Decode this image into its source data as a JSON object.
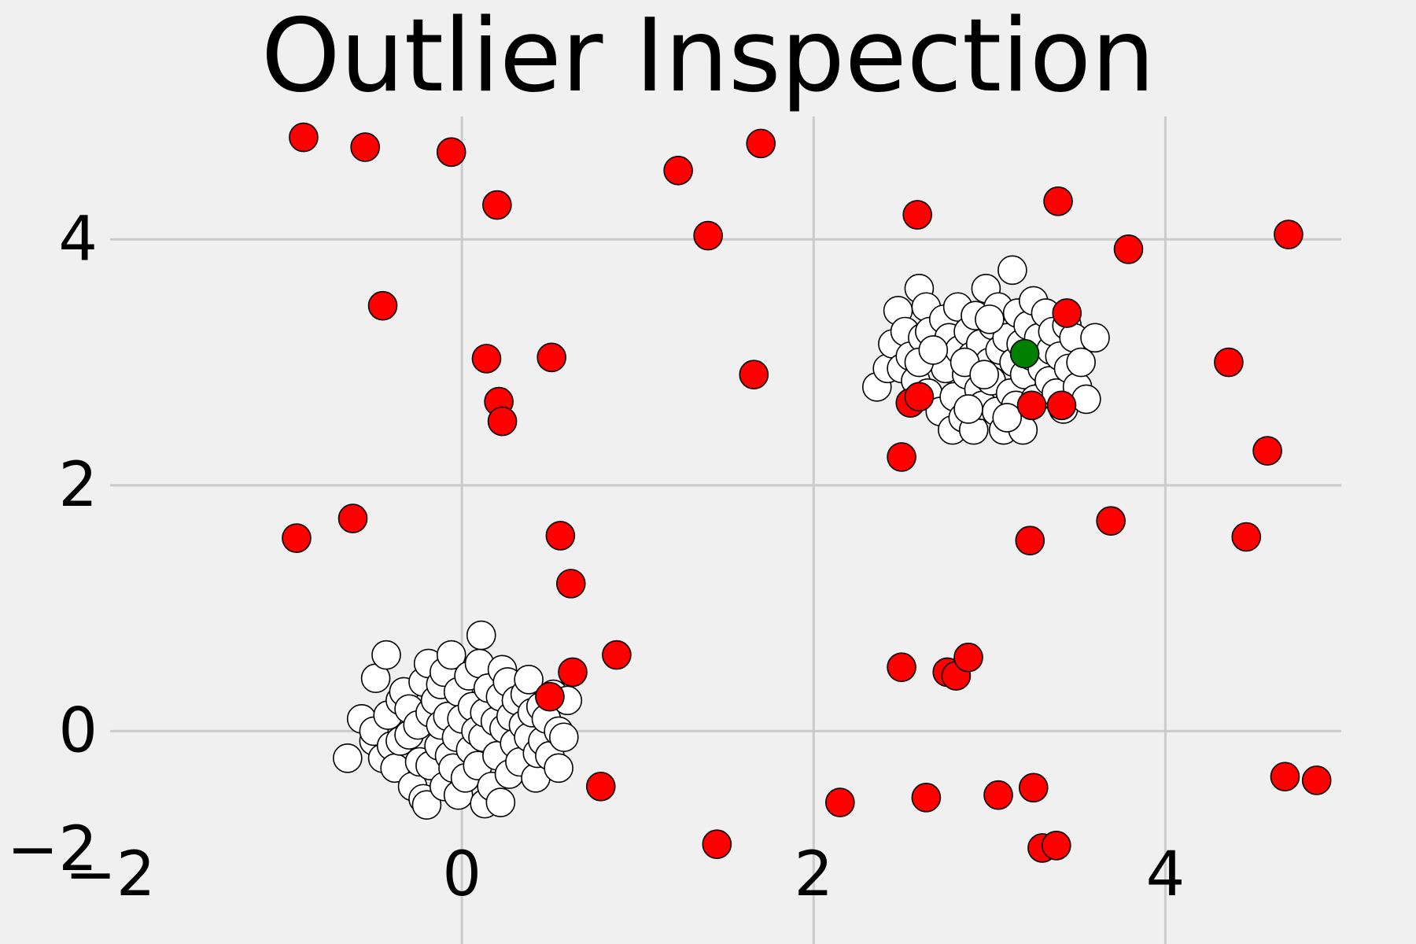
{
  "chart_data": {
    "type": "scatter",
    "title": "Outlier Inspection",
    "xlabel": "",
    "ylabel": "",
    "xlim": [
      -2,
      5.0
    ],
    "ylim": [
      -2,
      5.0
    ],
    "xticks": [
      -2,
      0,
      2,
      4
    ],
    "xtick_labels": [
      "−2",
      "0",
      "2",
      "4"
    ],
    "yticks": [
      -2,
      0,
      2,
      4
    ],
    "ytick_labels": [
      "−2",
      "0",
      "2",
      "4"
    ],
    "grid": true,
    "colors": {
      "background": "#f0f0f0",
      "grid": "#cbcbcb",
      "inlier": "#ffffff",
      "outlier": "#ff0000",
      "highlight": "#008000",
      "edge": "#000000"
    },
    "series": [
      {
        "color": "#ffffff",
        "points": [
          [
            -0.65,
            -0.22
          ],
          [
            -0.57,
            0.1
          ],
          [
            -0.5,
            -0.08
          ],
          [
            -0.5,
            0.0
          ],
          [
            -0.49,
            0.43
          ],
          [
            -0.45,
            -0.22
          ],
          [
            -0.43,
            0.62
          ],
          [
            -0.42,
            0.13
          ],
          [
            -0.4,
            -0.12
          ],
          [
            -0.38,
            -0.3
          ],
          [
            -0.35,
            -0.08
          ],
          [
            -0.35,
            0.25
          ],
          [
            -0.33,
            0.32
          ],
          [
            -0.3,
            -0.03
          ],
          [
            -0.3,
            0.18
          ],
          [
            -0.28,
            -0.45
          ],
          [
            -0.25,
            0.05
          ],
          [
            -0.24,
            -0.25
          ],
          [
            -0.22,
            0.4
          ],
          [
            -0.22,
            -0.55
          ],
          [
            -0.2,
            -0.6
          ],
          [
            -0.19,
            0.55
          ],
          [
            -0.18,
            0.15
          ],
          [
            -0.18,
            -0.28
          ],
          [
            -0.15,
            0.25
          ],
          [
            -0.13,
            -0.12
          ],
          [
            -0.12,
            0.05
          ],
          [
            -0.12,
            0.38
          ],
          [
            -0.1,
            -0.45
          ],
          [
            -0.1,
            0.48
          ],
          [
            -0.08,
            0.12
          ],
          [
            -0.07,
            -0.2
          ],
          [
            -0.06,
            0.62
          ],
          [
            -0.05,
            -0.3
          ],
          [
            -0.03,
            -0.05
          ],
          [
            -0.02,
            -0.52
          ],
          [
            -0.02,
            0.32
          ],
          [
            0.0,
            0.1
          ],
          [
            0.02,
            -0.38
          ],
          [
            0.04,
            0.45
          ],
          [
            0.05,
            -0.15
          ],
          [
            0.06,
            0.2
          ],
          [
            0.08,
            0.0
          ],
          [
            0.09,
            -0.28
          ],
          [
            0.1,
            0.55
          ],
          [
            0.11,
            0.78
          ],
          [
            0.12,
            -0.05
          ],
          [
            0.13,
            0.15
          ],
          [
            0.13,
            -0.59
          ],
          [
            0.15,
            0.35
          ],
          [
            0.17,
            -0.45
          ],
          [
            0.19,
            0.08
          ],
          [
            0.2,
            -0.2
          ],
          [
            0.22,
            0.28
          ],
          [
            0.22,
            -0.58
          ],
          [
            0.23,
            0.5
          ],
          [
            0.24,
            0.02
          ],
          [
            0.26,
            0.4
          ],
          [
            0.27,
            -0.35
          ],
          [
            0.28,
            0.12
          ],
          [
            0.3,
            -0.1
          ],
          [
            0.31,
            0.25
          ],
          [
            0.33,
            -0.25
          ],
          [
            0.35,
            0.05
          ],
          [
            0.36,
            0.3
          ],
          [
            0.38,
            -0.05
          ],
          [
            0.38,
            0.42
          ],
          [
            0.4,
            0.15
          ],
          [
            0.42,
            -0.38
          ],
          [
            0.43,
            -0.18
          ],
          [
            0.45,
            0.2
          ],
          [
            0.46,
            -0.08
          ],
          [
            0.48,
            0.1
          ],
          [
            0.5,
            -0.2
          ],
          [
            0.52,
            0.3
          ],
          [
            0.55,
            -0.3
          ],
          [
            0.55,
            0.0
          ],
          [
            0.6,
            0.25
          ],
          [
            0.58,
            -0.05
          ],
          [
            2.36,
            2.8
          ],
          [
            2.42,
            2.95
          ],
          [
            2.45,
            3.15
          ],
          [
            2.48,
            3.42
          ],
          [
            2.5,
            2.95
          ],
          [
            2.52,
            3.25
          ],
          [
            2.55,
            3.05
          ],
          [
            2.58,
            2.85
          ],
          [
            2.6,
            3.6
          ],
          [
            2.62,
            3.2
          ],
          [
            2.64,
            3.45
          ],
          [
            2.65,
            2.75
          ],
          [
            2.66,
            3.25
          ],
          [
            2.7,
            3.05
          ],
          [
            2.72,
            2.6
          ],
          [
            2.74,
            3.35
          ],
          [
            2.75,
            2.95
          ],
          [
            2.77,
            3.2
          ],
          [
            2.79,
            2.45
          ],
          [
            2.8,
            2.72
          ],
          [
            2.82,
            3.45
          ],
          [
            2.83,
            3.1
          ],
          [
            2.85,
            2.55
          ],
          [
            2.87,
            2.9
          ],
          [
            2.88,
            3.25
          ],
          [
            2.9,
            3.05
          ],
          [
            2.91,
            2.45
          ],
          [
            2.92,
            3.38
          ],
          [
            2.94,
            2.78
          ],
          [
            2.95,
            3.15
          ],
          [
            2.96,
            2.65
          ],
          [
            2.98,
            3.6
          ],
          [
            3.0,
            3.0
          ],
          [
            3.01,
            2.85
          ],
          [
            3.02,
            3.3
          ],
          [
            3.04,
            2.6
          ],
          [
            3.05,
            3.45
          ],
          [
            3.06,
            3.1
          ],
          [
            3.08,
            2.45
          ],
          [
            3.1,
            3.2
          ],
          [
            3.12,
            2.75
          ],
          [
            3.13,
            3.75
          ],
          [
            3.14,
            3.0
          ],
          [
            3.15,
            2.65
          ],
          [
            3.16,
            3.4
          ],
          [
            3.18,
            3.15
          ],
          [
            3.19,
            2.45
          ],
          [
            3.2,
            2.9
          ],
          [
            3.22,
            3.3
          ],
          [
            3.24,
            3.05
          ],
          [
            3.25,
            3.5
          ],
          [
            3.26,
            2.7
          ],
          [
            3.28,
            3.2
          ],
          [
            3.3,
            2.95
          ],
          [
            3.32,
            3.4
          ],
          [
            3.34,
            2.85
          ],
          [
            3.35,
            3.1
          ],
          [
            3.36,
            3.25
          ],
          [
            3.38,
            2.75
          ],
          [
            3.4,
            3.05
          ],
          [
            3.42,
            2.62
          ],
          [
            3.44,
            3.3
          ],
          [
            3.45,
            2.95
          ],
          [
            3.48,
            3.2
          ],
          [
            3.5,
            2.8
          ],
          [
            3.52,
            3.0
          ],
          [
            3.55,
            2.7
          ],
          [
            3.6,
            3.2
          ],
          [
            2.6,
            3.0
          ],
          [
            2.68,
            3.1
          ],
          [
            2.86,
            3.0
          ],
          [
            2.97,
            2.9
          ],
          [
            2.88,
            2.62
          ],
          [
            3.0,
            3.35
          ],
          [
            3.1,
            2.55
          ]
        ]
      },
      {
        "color": "#ff0000",
        "points": [
          [
            -0.94,
            1.57
          ],
          [
            -0.62,
            1.73
          ],
          [
            -0.45,
            3.46
          ],
          [
            -0.55,
            4.75
          ],
          [
            -0.9,
            4.83
          ],
          [
            -0.06,
            4.71
          ],
          [
            0.2,
            4.28
          ],
          [
            0.14,
            3.03
          ],
          [
            0.21,
            2.68
          ],
          [
            0.51,
            3.04
          ],
          [
            0.23,
            2.52
          ],
          [
            0.56,
            1.59
          ],
          [
            0.62,
            1.2
          ],
          [
            0.63,
            0.48
          ],
          [
            0.5,
            0.28
          ],
          [
            0.88,
            0.62
          ],
          [
            0.79,
            -0.45
          ],
          [
            1.23,
            4.56
          ],
          [
            1.4,
            4.03
          ],
          [
            1.7,
            4.78
          ],
          [
            1.66,
            2.9
          ],
          [
            1.45,
            -0.92
          ],
          [
            2.15,
            -0.58
          ],
          [
            2.59,
            4.2
          ],
          [
            2.5,
            2.23
          ],
          [
            2.55,
            2.67
          ],
          [
            2.6,
            2.72
          ],
          [
            2.5,
            0.52
          ],
          [
            2.64,
            -0.54
          ],
          [
            2.76,
            0.48
          ],
          [
            2.81,
            0.45
          ],
          [
            2.88,
            0.6
          ],
          [
            3.05,
            -0.52
          ],
          [
            3.25,
            -0.46
          ],
          [
            3.3,
            -0.95
          ],
          [
            3.38,
            -0.93
          ],
          [
            3.24,
            2.65
          ],
          [
            3.41,
            2.65
          ],
          [
            3.44,
            3.4
          ],
          [
            3.23,
            1.55
          ],
          [
            3.39,
            4.31
          ],
          [
            3.69,
            1.71
          ],
          [
            3.79,
            3.92
          ],
          [
            4.36,
            3.0
          ],
          [
            4.46,
            1.58
          ],
          [
            4.58,
            2.28
          ],
          [
            4.68,
            -0.37
          ],
          [
            4.86,
            -0.4
          ],
          [
            4.7,
            4.04
          ]
        ]
      },
      {
        "color": "#008000",
        "points": [
          [
            3.2,
            3.07
          ]
        ]
      }
    ]
  }
}
